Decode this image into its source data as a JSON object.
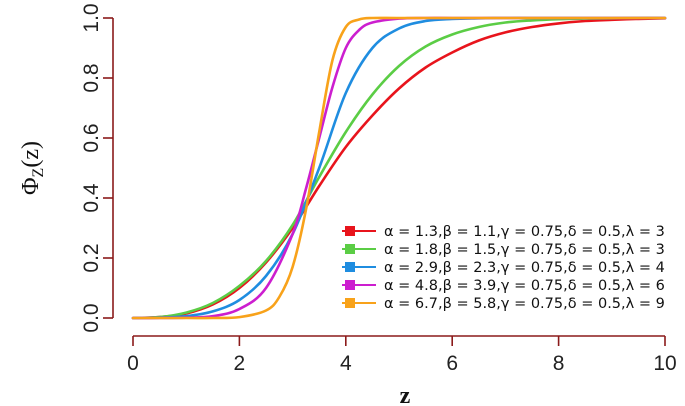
{
  "chart_data": {
    "type": "line",
    "title": "",
    "xlabel": "z",
    "ylabel": "Φ_Z(z)",
    "ylabel_main": "Φ",
    "ylabel_sub": "Z",
    "ylabel_tail": "(z)",
    "xlim": [
      0,
      10
    ],
    "ylim": [
      0,
      1
    ],
    "xticks": [
      0,
      2,
      4,
      6,
      8,
      10
    ],
    "yticks": [
      0.0,
      0.2,
      0.4,
      0.6,
      0.8,
      1.0
    ],
    "xtick_labels": [
      "0",
      "2",
      "4",
      "6",
      "8",
      "10"
    ],
    "ytick_labels": [
      "0.0",
      "0.2",
      "0.4",
      "0.6",
      "0.8",
      "1.0"
    ],
    "grid": false,
    "legend_position": "bottom-right",
    "series": [
      {
        "name": "α = 1.3,β = 1.1,γ = 0.75,δ = 0.5,λ = 3",
        "color": "#e8141c",
        "x": [
          0,
          0.5,
          1,
          1.5,
          2,
          2.5,
          3,
          3.5,
          4,
          4.5,
          5,
          5.5,
          6,
          6.5,
          7,
          7.5,
          8,
          8.5,
          9,
          9.5,
          10
        ],
        "y": [
          0,
          0.003,
          0.015,
          0.045,
          0.1,
          0.185,
          0.3,
          0.44,
          0.57,
          0.675,
          0.765,
          0.835,
          0.885,
          0.925,
          0.952,
          0.97,
          0.982,
          0.99,
          0.994,
          0.997,
          0.999
        ]
      },
      {
        "name": "α = 1.8,β = 1.5,γ = 0.75,δ = 0.5,λ = 3",
        "color": "#5bcd45",
        "x": [
          0,
          0.5,
          1,
          1.5,
          2,
          2.5,
          3,
          3.5,
          4,
          4.5,
          5,
          5.5,
          6,
          6.5,
          7,
          7.5,
          8,
          8.5,
          9,
          9.5,
          10
        ],
        "y": [
          0,
          0.003,
          0.018,
          0.05,
          0.107,
          0.19,
          0.31,
          0.47,
          0.62,
          0.745,
          0.84,
          0.905,
          0.945,
          0.97,
          0.985,
          0.992,
          0.996,
          0.998,
          0.999,
          1.0,
          1.0
        ]
      },
      {
        "name": "α = 2.9,β = 2.3,γ = 0.75,δ = 0.5,λ = 4",
        "color": "#1f8de0",
        "x": [
          0,
          0.5,
          1,
          1.5,
          2,
          2.5,
          3,
          3.5,
          4,
          4.5,
          5,
          5.5,
          6,
          6.5,
          7,
          7.5,
          8,
          8.5,
          9,
          9.5,
          10
        ],
        "y": [
          0,
          0.001,
          0.006,
          0.022,
          0.06,
          0.14,
          0.28,
          0.5,
          0.75,
          0.9,
          0.965,
          0.99,
          0.997,
          0.999,
          1.0,
          1.0,
          1.0,
          1.0,
          1.0,
          1.0,
          1.0
        ]
      },
      {
        "name": "α = 4.8,β = 3.9,γ = 0.75,δ = 0.5,λ = 6",
        "color": "#cc1ecf",
        "x": [
          0,
          0.5,
          1,
          1.5,
          2,
          2.5,
          3,
          3.25,
          3.5,
          3.75,
          4,
          4.25,
          4.5,
          5,
          5.5,
          6,
          7,
          8,
          9,
          10
        ],
        "y": [
          0,
          0.0,
          0.001,
          0.006,
          0.03,
          0.1,
          0.28,
          0.43,
          0.6,
          0.77,
          0.9,
          0.96,
          0.985,
          0.998,
          1.0,
          1.0,
          1.0,
          1.0,
          1.0,
          1.0
        ]
      },
      {
        "name": "α = 6.7,β = 5.8,γ = 0.75,δ = 0.5,λ = 9",
        "color": "#f8a21a",
        "x": [
          0,
          1,
          1.5,
          2,
          2.5,
          2.75,
          3,
          3.25,
          3.5,
          3.75,
          4,
          4.25,
          4.5,
          5,
          6,
          7,
          8,
          9,
          10
        ],
        "y": [
          0,
          0.0,
          0.0,
          0.003,
          0.025,
          0.07,
          0.17,
          0.36,
          0.62,
          0.86,
          0.97,
          0.995,
          1.0,
          1.0,
          1.0,
          1.0,
          1.0,
          1.0,
          1.0
        ]
      }
    ]
  }
}
